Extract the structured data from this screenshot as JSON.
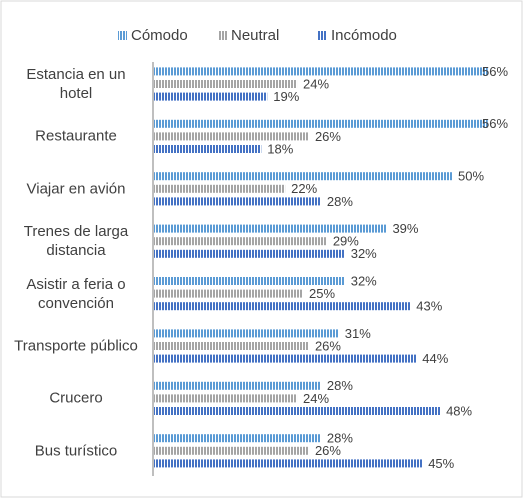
{
  "chart_data": {
    "type": "bar",
    "orientation": "horizontal",
    "categories": [
      "Estancia en un hotel",
      "Restaurante",
      "Viajar en avión",
      "Trenes de larga distancia",
      "Asistir a feria o convención",
      "Transporte público",
      "Crucero",
      "Bus turístico"
    ],
    "series": [
      {
        "name": "Cómodo",
        "color": "#5b9bd5",
        "values": [
          56,
          56,
          50,
          39,
          32,
          31,
          28,
          28
        ],
        "value_labels": [
          "56%",
          "56%",
          "50%",
          "39%",
          "32%",
          "31%",
          "28%",
          "28%"
        ]
      },
      {
        "name": "Neutral",
        "color": "#a5a5a5",
        "values": [
          24,
          26,
          22,
          29,
          25,
          26,
          24,
          26
        ],
        "value_labels": [
          "24%",
          "26%",
          "22%",
          "29%",
          "25%",
          "26%",
          "24%",
          "26%"
        ]
      },
      {
        "name": "Incómodo",
        "color": "#4472c4",
        "values": [
          19,
          18,
          28,
          32,
          43,
          44,
          48,
          45
        ],
        "value_labels": [
          "19%",
          "18%",
          "28%",
          "32%",
          "43%",
          "44%",
          "48%",
          "45%"
        ]
      }
    ],
    "legend": "top"
  }
}
